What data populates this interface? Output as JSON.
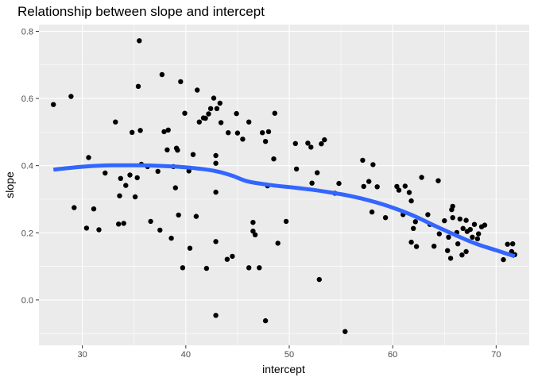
{
  "chart_data": {
    "type": "scatter",
    "title": "Relationship between slope and intercept",
    "xlabel": "intercept",
    "ylabel": "slope",
    "xlim": [
      25.8,
      73.2
    ],
    "ylim": [
      -0.135,
      0.82
    ],
    "x_ticks": [
      30,
      40,
      50,
      60,
      70
    ],
    "y_ticks": [
      0.0,
      0.2,
      0.4,
      0.6,
      0.8
    ],
    "x_tick_labels": [
      "30",
      "40",
      "50",
      "60",
      "70"
    ],
    "y_tick_labels": [
      "0.0",
      "0.2",
      "0.4",
      "0.6",
      "0.8"
    ],
    "grid": true,
    "colors": {
      "panel_background": "#ebebeb",
      "grid_major": "#ffffff",
      "point": "#000000",
      "smooth_line": "#3366ff"
    },
    "points": [
      [
        27.2,
        0.582
      ],
      [
        28.9,
        0.606
      ],
      [
        29.2,
        0.275
      ],
      [
        30.4,
        0.214
      ],
      [
        30.6,
        0.424
      ],
      [
        31.1,
        0.271
      ],
      [
        31.6,
        0.209
      ],
      [
        32.2,
        0.378
      ],
      [
        33.2,
        0.53
      ],
      [
        33.5,
        0.226
      ],
      [
        33.6,
        0.31
      ],
      [
        33.7,
        0.362
      ],
      [
        34.0,
        0.228
      ],
      [
        34.2,
        0.341
      ],
      [
        34.6,
        0.372
      ],
      [
        34.8,
        0.499
      ],
      [
        35.1,
        0.307
      ],
      [
        35.3,
        0.364
      ],
      [
        35.4,
        0.636
      ],
      [
        35.5,
        0.772
      ],
      [
        35.6,
        0.505
      ],
      [
        35.7,
        0.404
      ],
      [
        36.3,
        0.397
      ],
      [
        36.6,
        0.234
      ],
      [
        37.3,
        0.383
      ],
      [
        37.5,
        0.208
      ],
      [
        37.7,
        0.671
      ],
      [
        37.9,
        0.501
      ],
      [
        38.2,
        0.447
      ],
      [
        38.3,
        0.506
      ],
      [
        38.6,
        0.184
      ],
      [
        38.8,
        0.397
      ],
      [
        39.0,
        0.334
      ],
      [
        39.1,
        0.452
      ],
      [
        39.2,
        0.446
      ],
      [
        39.3,
        0.253
      ],
      [
        39.5,
        0.65
      ],
      [
        39.7,
        0.096
      ],
      [
        39.9,
        0.556
      ],
      [
        40.3,
        0.384
      ],
      [
        40.4,
        0.154
      ],
      [
        40.7,
        0.433
      ],
      [
        41.0,
        0.249
      ],
      [
        41.1,
        0.625
      ],
      [
        41.3,
        0.53
      ],
      [
        41.7,
        0.542
      ],
      [
        41.9,
        0.541
      ],
      [
        42.0,
        0.094
      ],
      [
        42.2,
        0.554
      ],
      [
        42.4,
        0.57
      ],
      [
        42.7,
        0.601
      ],
      [
        42.9,
        0.43
      ],
      [
        42.9,
        0.407
      ],
      [
        42.9,
        0.321
      ],
      [
        42.9,
        0.174
      ],
      [
        42.9,
        -0.046
      ],
      [
        43.0,
        0.57
      ],
      [
        43.3,
        0.586
      ],
      [
        43.4,
        0.528
      ],
      [
        44.1,
        0.498
      ],
      [
        44.0,
        0.121
      ],
      [
        44.5,
        0.13
      ],
      [
        44.9,
        0.555
      ],
      [
        45.0,
        0.497
      ],
      [
        45.5,
        0.479
      ],
      [
        46.1,
        0.53
      ],
      [
        46.1,
        0.096
      ],
      [
        46.5,
        0.231
      ],
      [
        46.5,
        0.205
      ],
      [
        46.7,
        0.194
      ],
      [
        47.1,
        0.096
      ],
      [
        47.4,
        0.498
      ],
      [
        47.7,
        0.472
      ],
      [
        47.7,
        -0.062
      ],
      [
        47.9,
        0.34
      ],
      [
        48.0,
        0.501
      ],
      [
        48.5,
        0.42
      ],
      [
        48.6,
        0.556
      ],
      [
        48.9,
        0.169
      ],
      [
        49.7,
        0.234
      ],
      [
        50.6,
        0.466
      ],
      [
        50.7,
        0.39
      ],
      [
        51.8,
        0.467
      ],
      [
        52.1,
        0.455
      ],
      [
        52.2,
        0.348
      ],
      [
        52.7,
        0.379
      ],
      [
        52.9,
        0.061
      ],
      [
        53.1,
        0.465
      ],
      [
        53.4,
        0.477
      ],
      [
        54.4,
        0.318
      ],
      [
        54.8,
        0.347
      ],
      [
        55.4,
        -0.094
      ],
      [
        57.1,
        0.416
      ],
      [
        57.2,
        0.338
      ],
      [
        57.7,
        0.353
      ],
      [
        58.0,
        0.262
      ],
      [
        58.1,
        0.403
      ],
      [
        58.5,
        0.337
      ],
      [
        59.3,
        0.245
      ],
      [
        60.4,
        0.338
      ],
      [
        60.6,
        0.327
      ],
      [
        61.0,
        0.254
      ],
      [
        61.2,
        0.339
      ],
      [
        61.6,
        0.32
      ],
      [
        61.8,
        0.295
      ],
      [
        61.8,
        0.172
      ],
      [
        62.0,
        0.213
      ],
      [
        62.2,
        0.233
      ],
      [
        62.3,
        0.159
      ],
      [
        62.8,
        0.365
      ],
      [
        63.4,
        0.254
      ],
      [
        63.6,
        0.225
      ],
      [
        64.0,
        0.16
      ],
      [
        64.4,
        0.355
      ],
      [
        64.5,
        0.197
      ],
      [
        65.0,
        0.236
      ],
      [
        65.3,
        0.147
      ],
      [
        65.4,
        0.187
      ],
      [
        65.6,
        0.124
      ],
      [
        65.7,
        0.269
      ],
      [
        65.8,
        0.279
      ],
      [
        65.8,
        0.245
      ],
      [
        66.2,
        0.201
      ],
      [
        66.3,
        0.167
      ],
      [
        66.5,
        0.241
      ],
      [
        66.7,
        0.134
      ],
      [
        66.8,
        0.213
      ],
      [
        67.1,
        0.144
      ],
      [
        67.1,
        0.237
      ],
      [
        67.2,
        0.204
      ],
      [
        67.5,
        0.21
      ],
      [
        67.7,
        0.187
      ],
      [
        67.9,
        0.225
      ],
      [
        68.2,
        0.182
      ],
      [
        68.3,
        0.197
      ],
      [
        68.6,
        0.218
      ],
      [
        68.9,
        0.223
      ],
      [
        70.7,
        0.12
      ],
      [
        71.1,
        0.166
      ],
      [
        71.5,
        0.144
      ],
      [
        71.6,
        0.167
      ],
      [
        71.8,
        0.135
      ]
    ],
    "smooth": [
      [
        27.2,
        0.388
      ],
      [
        29.0,
        0.394
      ],
      [
        31.0,
        0.399
      ],
      [
        33.0,
        0.401
      ],
      [
        35.0,
        0.401
      ],
      [
        37.0,
        0.4
      ],
      [
        39.0,
        0.397
      ],
      [
        41.0,
        0.392
      ],
      [
        43.0,
        0.383
      ],
      [
        44.5,
        0.37
      ],
      [
        46.0,
        0.353
      ],
      [
        48.0,
        0.343
      ],
      [
        50.0,
        0.336
      ],
      [
        52.0,
        0.329
      ],
      [
        54.0,
        0.32
      ],
      [
        56.0,
        0.309
      ],
      [
        58.0,
        0.294
      ],
      [
        60.0,
        0.275
      ],
      [
        62.0,
        0.251
      ],
      [
        64.0,
        0.222
      ],
      [
        66.0,
        0.194
      ],
      [
        68.0,
        0.168
      ],
      [
        70.0,
        0.148
      ],
      [
        71.8,
        0.13
      ]
    ]
  }
}
